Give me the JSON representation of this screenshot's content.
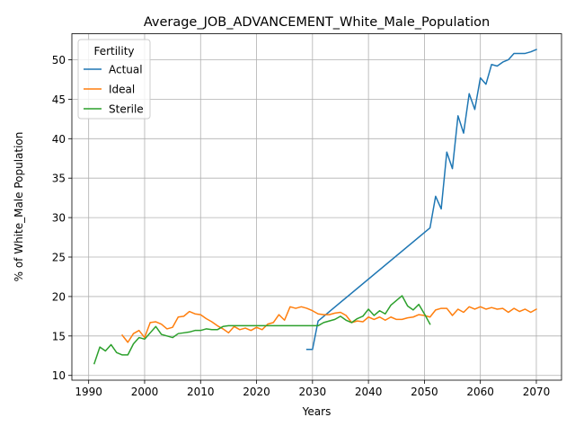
{
  "chart_data": {
    "type": "line",
    "title": "Average_JOB_ADVANCEMENT_White_Male_Population",
    "xlabel": "Years",
    "ylabel": "% of White_Male Population",
    "xlim": [
      1987,
      2074.5
    ],
    "ylim": [
      9.4,
      53.3
    ],
    "x_ticks": [
      1990,
      2000,
      2010,
      2020,
      2030,
      2040,
      2050,
      2060,
      2070
    ],
    "y_ticks": [
      10,
      15,
      20,
      25,
      30,
      35,
      40,
      45,
      50
    ],
    "grid": true,
    "legend": {
      "title": "Fertility",
      "placement": "top-left"
    },
    "series": [
      {
        "name": "Actual",
        "color": "#1f77b4",
        "points": [
          [
            2029,
            13.3
          ],
          [
            2030,
            13.3
          ],
          [
            2031,
            16.9
          ],
          [
            2051,
            28.7
          ],
          [
            2052,
            32.7
          ],
          [
            2053,
            31.1
          ],
          [
            2054,
            38.3
          ],
          [
            2055,
            36.2
          ],
          [
            2056,
            42.9
          ],
          [
            2057,
            40.7
          ],
          [
            2058,
            45.7
          ],
          [
            2059,
            43.7
          ],
          [
            2060,
            47.7
          ],
          [
            2061,
            46.9
          ],
          [
            2062,
            49.4
          ],
          [
            2063,
            49.2
          ],
          [
            2064,
            49.7
          ],
          [
            2065,
            50.0
          ],
          [
            2066,
            50.8
          ],
          [
            2067,
            50.8
          ],
          [
            2068,
            50.8
          ],
          [
            2069,
            51.0
          ],
          [
            2070,
            51.3
          ]
        ]
      },
      {
        "name": "Ideal",
        "color": "#ff7f0e",
        "points": [
          [
            1996,
            15.1
          ],
          [
            1997,
            14.2
          ],
          [
            1998,
            15.3
          ],
          [
            1999,
            15.7
          ],
          [
            2000,
            14.8
          ],
          [
            2001,
            16.7
          ],
          [
            2002,
            16.8
          ],
          [
            2003,
            16.5
          ],
          [
            2004,
            15.9
          ],
          [
            2005,
            16.1
          ],
          [
            2006,
            17.4
          ],
          [
            2007,
            17.5
          ],
          [
            2008,
            18.1
          ],
          [
            2009,
            17.8
          ],
          [
            2010,
            17.7
          ],
          [
            2011,
            17.2
          ],
          [
            2012,
            16.8
          ],
          [
            2013,
            16.3
          ],
          [
            2014,
            15.9
          ],
          [
            2015,
            15.4
          ],
          [
            2016,
            16.2
          ],
          [
            2017,
            15.8
          ],
          [
            2018,
            16.0
          ],
          [
            2019,
            15.7
          ],
          [
            2020,
            16.1
          ],
          [
            2021,
            15.8
          ],
          [
            2022,
            16.5
          ],
          [
            2023,
            16.7
          ],
          [
            2024,
            17.7
          ],
          [
            2025,
            17.0
          ],
          [
            2026,
            18.7
          ],
          [
            2027,
            18.5
          ],
          [
            2028,
            18.7
          ],
          [
            2029,
            18.5
          ],
          [
            2030,
            18.2
          ],
          [
            2031,
            17.8
          ],
          [
            2032,
            17.7
          ],
          [
            2033,
            17.7
          ],
          [
            2034,
            17.9
          ],
          [
            2035,
            18.0
          ],
          [
            2036,
            17.6
          ],
          [
            2037,
            16.7
          ],
          [
            2038,
            16.9
          ],
          [
            2039,
            16.8
          ],
          [
            2040,
            17.4
          ],
          [
            2041,
            17.1
          ],
          [
            2042,
            17.4
          ],
          [
            2043,
            17.0
          ],
          [
            2044,
            17.4
          ],
          [
            2045,
            17.1
          ],
          [
            2046,
            17.1
          ],
          [
            2047,
            17.3
          ],
          [
            2048,
            17.4
          ],
          [
            2049,
            17.7
          ],
          [
            2050,
            17.6
          ],
          [
            2051,
            17.4
          ],
          [
            2052,
            18.3
          ],
          [
            2053,
            18.5
          ],
          [
            2054,
            18.5
          ],
          [
            2055,
            17.6
          ],
          [
            2056,
            18.4
          ],
          [
            2057,
            18.0
          ],
          [
            2058,
            18.7
          ],
          [
            2059,
            18.4
          ],
          [
            2060,
            18.7
          ],
          [
            2061,
            18.4
          ],
          [
            2062,
            18.6
          ],
          [
            2063,
            18.4
          ],
          [
            2064,
            18.5
          ],
          [
            2065,
            18.0
          ],
          [
            2066,
            18.5
          ],
          [
            2067,
            18.1
          ],
          [
            2068,
            18.4
          ],
          [
            2069,
            18.0
          ],
          [
            2070,
            18.4
          ]
        ]
      },
      {
        "name": "Sterile",
        "color": "#2ca02c",
        "points": [
          [
            1991,
            11.5
          ],
          [
            1992,
            13.6
          ],
          [
            1993,
            13.1
          ],
          [
            1994,
            13.9
          ],
          [
            1995,
            12.9
          ],
          [
            1996,
            12.6
          ],
          [
            1997,
            12.6
          ],
          [
            1998,
            14.0
          ],
          [
            1999,
            14.8
          ],
          [
            2000,
            14.6
          ],
          [
            2001,
            15.4
          ],
          [
            2002,
            16.2
          ],
          [
            2003,
            15.2
          ],
          [
            2004,
            15.0
          ],
          [
            2005,
            14.8
          ],
          [
            2006,
            15.3
          ],
          [
            2007,
            15.4
          ],
          [
            2008,
            15.5
          ],
          [
            2009,
            15.7
          ],
          [
            2010,
            15.7
          ],
          [
            2011,
            15.9
          ],
          [
            2012,
            15.8
          ],
          [
            2013,
            15.8
          ],
          [
            2014,
            16.2
          ],
          [
            2015,
            16.3
          ],
          [
            2020,
            16.3
          ],
          [
            2025,
            16.3
          ],
          [
            2030,
            16.3
          ],
          [
            2031,
            16.3
          ],
          [
            2032,
            16.7
          ],
          [
            2033,
            16.9
          ],
          [
            2034,
            17.1
          ],
          [
            2035,
            17.5
          ],
          [
            2036,
            17.0
          ],
          [
            2037,
            16.7
          ],
          [
            2038,
            17.2
          ],
          [
            2039,
            17.5
          ],
          [
            2040,
            18.4
          ],
          [
            2041,
            17.6
          ],
          [
            2042,
            18.2
          ],
          [
            2043,
            17.8
          ],
          [
            2044,
            18.9
          ],
          [
            2045,
            19.5
          ],
          [
            2046,
            20.1
          ],
          [
            2047,
            18.8
          ],
          [
            2048,
            18.3
          ],
          [
            2049,
            19.0
          ],
          [
            2050,
            17.8
          ],
          [
            2051,
            16.5
          ]
        ]
      }
    ]
  }
}
